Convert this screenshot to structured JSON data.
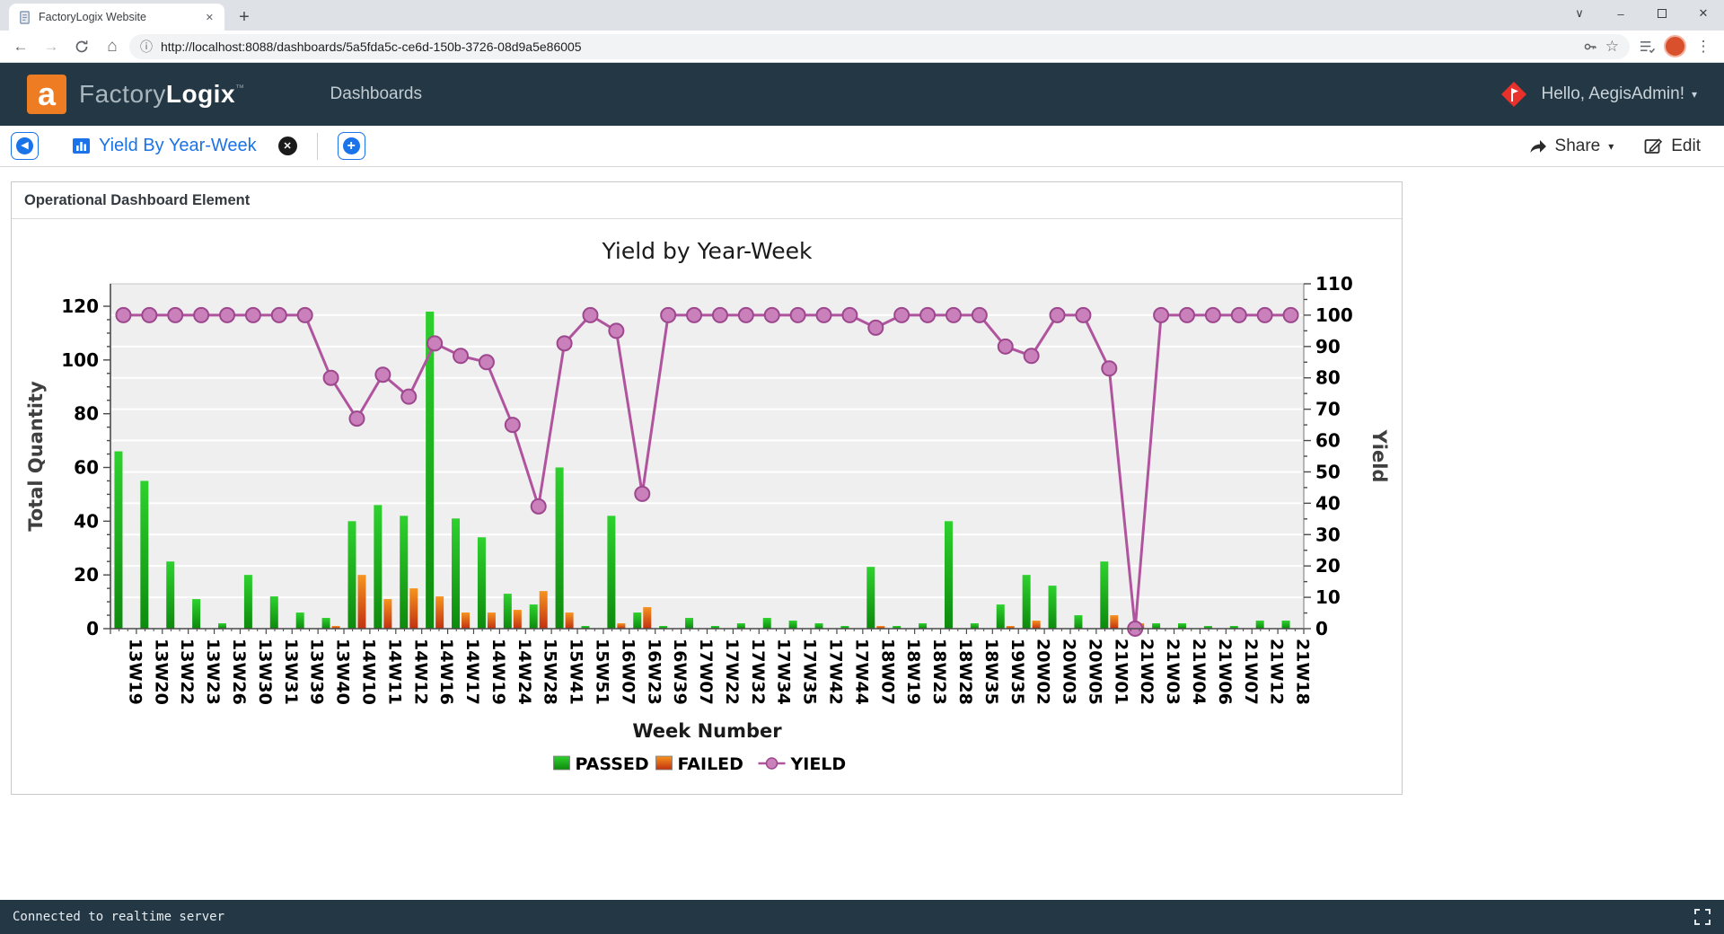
{
  "browser": {
    "tab_title": "FactoryLogix Website",
    "url": "http://localhost:8088/dashboards/5a5fda5c-ce6d-150b-3726-08d9a5e86005"
  },
  "icons": {
    "back": "←",
    "forward": "→",
    "home": "⌂",
    "info": "ⓘ",
    "star": "☆",
    "kebab": "⋮",
    "caret_down": "▾",
    "tab_close": "✕",
    "new_tab": "+",
    "window_menu": "∨",
    "minimize": "–",
    "close_window": "✕",
    "back_circle": "◀",
    "plus_circle": "+",
    "close_view": "✕"
  },
  "header": {
    "logo_letter": "a",
    "brand_factory": "Factory",
    "brand_logix": "Logix",
    "brand_tm": "™",
    "nav_dashboards": "Dashboards",
    "greeting": "Hello, AegisAdmin!"
  },
  "toolbar": {
    "view_title": "Yield By Year-Week",
    "share_label": "Share",
    "edit_label": "Edit"
  },
  "panel": {
    "header": "Operational Dashboard Element"
  },
  "status_bar": {
    "text": "Connected to realtime server"
  },
  "colors": {
    "header_bg": "#233744",
    "accent_blue": "#1a73e8",
    "logo_orange": "#ee7c23",
    "passed_green_top": "#2ed12e",
    "passed_green_bottom": "#0d8a0d",
    "failed_orange_top": "#f6941f",
    "failed_red_bottom": "#c23110",
    "yield_line": "#b0549e",
    "yield_marker_fill": "#ca80bb",
    "yield_marker_stroke": "#9d478d",
    "plot_bg": "#efeff0"
  },
  "chart_data": {
    "type": "bar+line",
    "title": "Yield by Year-Week",
    "xlabel": "Week Number",
    "ylabel_left": "Total Quantity",
    "ylabel_right": "Yield",
    "ylim_left": [
      0,
      120
    ],
    "ytick_step_left": 20,
    "ylim_right": [
      0,
      110
    ],
    "ytick_step_right": 10,
    "grid": true,
    "legend_position": "bottom",
    "categories": [
      "13W19",
      "13W20",
      "13W22",
      "13W23",
      "13W26",
      "13W30",
      "13W31",
      "13W39",
      "13W40",
      "14W10",
      "14W11",
      "14W12",
      "14W16",
      "14W17",
      "14W19",
      "14W24",
      "15W28",
      "15W41",
      "15W51",
      "16W07",
      "16W23",
      "16W39",
      "17W07",
      "17W22",
      "17W32",
      "17W34",
      "17W35",
      "17W42",
      "17W44",
      "18W07",
      "18W19",
      "18W23",
      "18W28",
      "18W35",
      "19W35",
      "20W02",
      "20W03",
      "20W05",
      "21W01",
      "21W02",
      "21W03",
      "21W04",
      "21W06",
      "21W07",
      "21W12",
      "21W18"
    ],
    "series": [
      {
        "name": "PASSED",
        "type": "bar",
        "axis": "left",
        "color": "#1db51d",
        "values": [
          66,
          55,
          25,
          11,
          2,
          20,
          12,
          6,
          4,
          40,
          46,
          42,
          118,
          41,
          34,
          13,
          9,
          60,
          1,
          42,
          6,
          1,
          4,
          1,
          2,
          4,
          3,
          2,
          1,
          23,
          1,
          2,
          40,
          2,
          9,
          20,
          16,
          5,
          25,
          0,
          2,
          2,
          1,
          1,
          3,
          3
        ]
      },
      {
        "name": "FAILED",
        "type": "bar",
        "axis": "left",
        "color": "#d2400e",
        "values": [
          0,
          0,
          0,
          0,
          0,
          0,
          0,
          0,
          1,
          20,
          11,
          15,
          12,
          6,
          6,
          7,
          14,
          6,
          0,
          2,
          8,
          0,
          0,
          0,
          0,
          0,
          0,
          0,
          0,
          1,
          0,
          0,
          0,
          0,
          1,
          3,
          0,
          0,
          5,
          2,
          0,
          0,
          0,
          0,
          0,
          0
        ]
      },
      {
        "name": "YIELD",
        "type": "line",
        "axis": "right",
        "color": "#b0549e",
        "values": [
          100,
          100,
          100,
          100,
          100,
          100,
          100,
          100,
          80,
          67,
          81,
          74,
          91,
          87,
          85,
          65,
          39,
          91,
          100,
          95,
          43,
          100,
          100,
          100,
          100,
          100,
          100,
          100,
          100,
          96,
          100,
          100,
          100,
          100,
          90,
          87,
          100,
          100,
          83,
          0,
          100,
          100,
          100,
          100,
          100,
          100
        ]
      }
    ]
  }
}
